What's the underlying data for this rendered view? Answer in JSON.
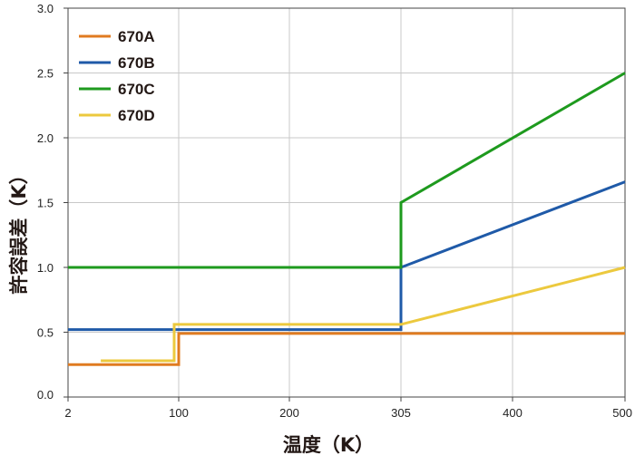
{
  "chart_data": {
    "type": "line",
    "xlabel": "温度（K）",
    "ylabel": "許容誤差（K）",
    "x_ticks": [
      {
        "value": 2,
        "label": "2"
      },
      {
        "value": 100,
        "label": "100"
      },
      {
        "value": 200,
        "label": "200"
      },
      {
        "value": 305,
        "label": "305"
      },
      {
        "value": 400,
        "label": "400"
      },
      {
        "value": 500,
        "label": "500"
      }
    ],
    "y_ticks": [
      {
        "value": 0.0,
        "label": "0.0"
      },
      {
        "value": 0.5,
        "label": "0.5"
      },
      {
        "value": 1.0,
        "label": "1.0"
      },
      {
        "value": 1.5,
        "label": "1.5"
      },
      {
        "value": 2.0,
        "label": "2.0"
      },
      {
        "value": 2.5,
        "label": "2.5"
      },
      {
        "value": 3.0,
        "label": "3.0"
      }
    ],
    "xlim": [
      2,
      500
    ],
    "ylim": [
      0,
      3.0
    ],
    "grid": true,
    "legend_position": "top-left",
    "series": [
      {
        "name": "670A",
        "color": "#e07b20",
        "points": [
          [
            2,
            0.25
          ],
          [
            100,
            0.25
          ],
          [
            100,
            0.49
          ],
          [
            500,
            0.49
          ]
        ]
      },
      {
        "name": "670B",
        "color": "#1f5aa8",
        "points": [
          [
            2,
            0.52
          ],
          [
            305,
            0.52
          ],
          [
            305,
            1.0
          ],
          [
            500,
            1.66
          ]
        ]
      },
      {
        "name": "670C",
        "color": "#1e9a1e",
        "points": [
          [
            2,
            1.0
          ],
          [
            305,
            1.0
          ],
          [
            305,
            1.5
          ],
          [
            500,
            2.5
          ]
        ]
      },
      {
        "name": "670D",
        "color": "#ecc93e",
        "points": [
          [
            31,
            0.28
          ],
          [
            96,
            0.28
          ],
          [
            96,
            0.56
          ],
          [
            305,
            0.56
          ],
          [
            500,
            1.0
          ]
        ]
      }
    ]
  }
}
